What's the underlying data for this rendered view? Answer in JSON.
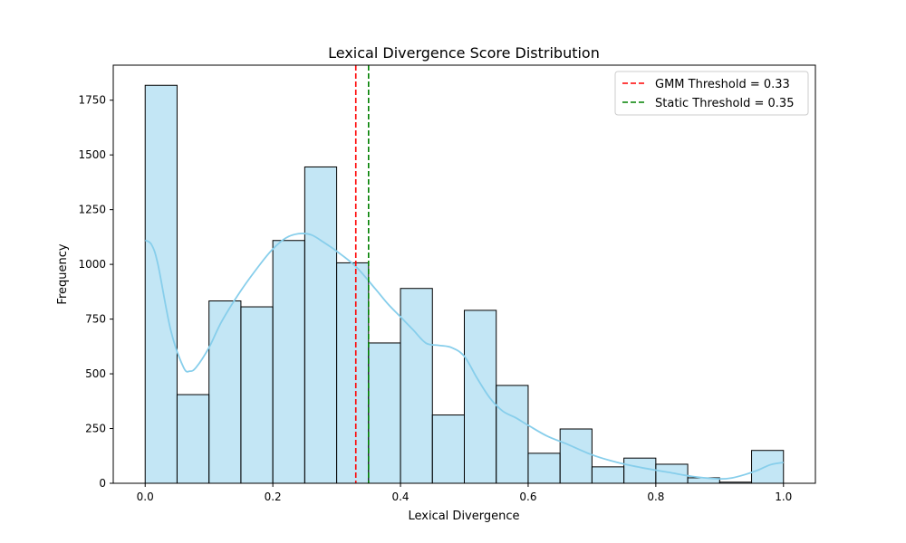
{
  "chart_data": {
    "type": "bar",
    "title": "Lexical Divergence Score Distribution",
    "xlabel": "Lexical Divergence",
    "ylabel": "Frequency",
    "xlim": [
      -0.05,
      1.05
    ],
    "ylim": [
      0,
      1910
    ],
    "xticks": [
      0.0,
      0.2,
      0.4,
      0.6,
      0.8,
      1.0
    ],
    "xtick_labels": [
      "0.0",
      "0.2",
      "0.4",
      "0.6",
      "0.8",
      "1.0"
    ],
    "yticks": [
      0,
      250,
      500,
      750,
      1000,
      1250,
      1500,
      1750
    ],
    "ytick_labels": [
      "0",
      "250",
      "500",
      "750",
      "1000",
      "1250",
      "1500",
      "1750"
    ],
    "grid": false,
    "legend_position": "top-right",
    "bar_color": "#87CEEB",
    "bar_edge_color": "#000000",
    "kde_color": "#87CEEB",
    "bins": [
      {
        "x0": 0.0,
        "x1": 0.05,
        "count": 1818
      },
      {
        "x0": 0.05,
        "x1": 0.1,
        "count": 405
      },
      {
        "x0": 0.1,
        "x1": 0.15,
        "count": 833
      },
      {
        "x0": 0.15,
        "x1": 0.2,
        "count": 806
      },
      {
        "x0": 0.2,
        "x1": 0.25,
        "count": 1109
      },
      {
        "x0": 0.25,
        "x1": 0.3,
        "count": 1445
      },
      {
        "x0": 0.3,
        "x1": 0.35,
        "count": 1007
      },
      {
        "x0": 0.35,
        "x1": 0.4,
        "count": 641
      },
      {
        "x0": 0.4,
        "x1": 0.45,
        "count": 890
      },
      {
        "x0": 0.45,
        "x1": 0.5,
        "count": 312
      },
      {
        "x0": 0.5,
        "x1": 0.55,
        "count": 790
      },
      {
        "x0": 0.55,
        "x1": 0.6,
        "count": 447
      },
      {
        "x0": 0.6,
        "x1": 0.65,
        "count": 137
      },
      {
        "x0": 0.65,
        "x1": 0.7,
        "count": 248
      },
      {
        "x0": 0.7,
        "x1": 0.75,
        "count": 75
      },
      {
        "x0": 0.75,
        "x1": 0.8,
        "count": 115
      },
      {
        "x0": 0.8,
        "x1": 0.85,
        "count": 87
      },
      {
        "x0": 0.85,
        "x1": 0.9,
        "count": 25
      },
      {
        "x0": 0.9,
        "x1": 0.95,
        "count": 5
      },
      {
        "x0": 0.95,
        "x1": 1.0,
        "count": 150
      }
    ],
    "kde": {
      "x": [
        0.0,
        0.01,
        0.02,
        0.04,
        0.06,
        0.07,
        0.08,
        0.1,
        0.12,
        0.15,
        0.18,
        0.2,
        0.22,
        0.24,
        0.26,
        0.28,
        0.3,
        0.33,
        0.36,
        0.38,
        0.4,
        0.42,
        0.44,
        0.46,
        0.48,
        0.5,
        0.52,
        0.54,
        0.56,
        0.58,
        0.6,
        0.63,
        0.66,
        0.7,
        0.74,
        0.78,
        0.82,
        0.86,
        0.9,
        0.92,
        0.94,
        0.96,
        0.98,
        1.0
      ],
      "y": [
        1110,
        1090,
        1000,
        700,
        530,
        512,
        530,
        620,
        740,
        880,
        1000,
        1070,
        1120,
        1140,
        1135,
        1100,
        1060,
        990,
        890,
        820,
        760,
        700,
        640,
        630,
        620,
        580,
        480,
        390,
        330,
        300,
        265,
        215,
        180,
        130,
        95,
        70,
        50,
        30,
        20,
        25,
        40,
        60,
        85,
        95
      ]
    },
    "thresholds": [
      {
        "name": "GMM Threshold = 0.33",
        "value": 0.33,
        "color": "#ff0000"
      },
      {
        "name": "Static Threshold = 0.35",
        "value": 0.35,
        "color": "#008000"
      }
    ]
  }
}
